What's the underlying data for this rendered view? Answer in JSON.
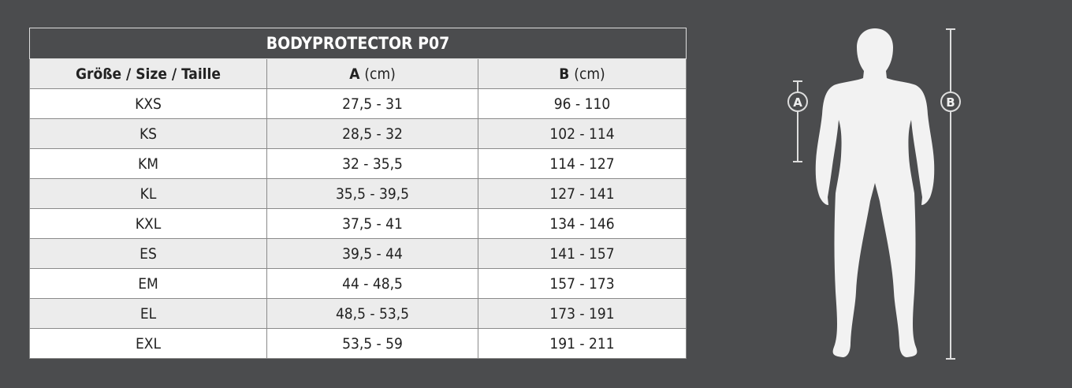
{
  "title": "BODYPROTECTOR P07",
  "headers": {
    "size": "Größe / Size / Taille",
    "a_letter": "A",
    "a_unit": "(cm)",
    "b_letter": "B",
    "b_unit": "(cm)"
  },
  "rows": [
    {
      "size": "KXS",
      "a": "27,5 - 31",
      "b": "96 - 110"
    },
    {
      "size": "KS",
      "a": "28,5 - 32",
      "b": "102 - 114"
    },
    {
      "size": "KM",
      "a": "32 - 35,5",
      "b": "114 - 127"
    },
    {
      "size": "KL",
      "a": "35,5 - 39,5",
      "b": "127 - 141"
    },
    {
      "size": "KXL",
      "a": "37,5 - 41",
      "b": "134 - 146"
    },
    {
      "size": "ES",
      "a": "39,5 - 44",
      "b": "141 - 157"
    },
    {
      "size": "EM",
      "a": "44 - 48,5",
      "b": "157 - 173"
    },
    {
      "size": "EL",
      "a": "48,5 - 53,5",
      "b": "173 - 191"
    },
    {
      "size": "EXL",
      "a": "53,5 - 59",
      "b": "191 - 211"
    }
  ],
  "figure": {
    "label_a": "A",
    "label_b": "B"
  },
  "colors": {
    "background": "#4b4c4e",
    "row_alt": "#ececec",
    "figure": "#f2f2f2"
  }
}
